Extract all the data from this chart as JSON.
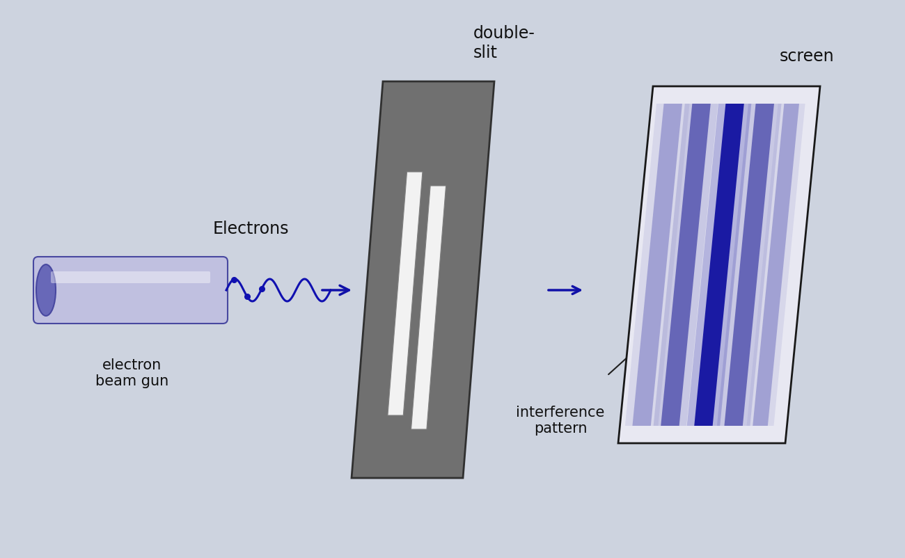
{
  "bg_color": "#cdd3df",
  "labels": {
    "electron_gun": "electron\nbeam gun",
    "electrons": "Electrons",
    "double_slit": "double-\nslit",
    "screen": "screen",
    "interference": "interference\npattern"
  },
  "gun_body_color": "#c0c0e0",
  "gun_end_color": "#6868b8",
  "gun_outline": "#4848a0",
  "wave_color": "#1010b0",
  "arrow_blue": "#1010a8",
  "arrow_black": "#202020",
  "slit_color": "#707070",
  "slit_open": "#f2f2f2",
  "screen_bg": "#e8e8f2",
  "screen_border": "#181818",
  "fringe_dark": "#1212a0",
  "fringe_mid": "#5555b0",
  "fringe_light": "#9090cc",
  "fringe_vlight": "#c0c0e0",
  "text_color": "#101010"
}
